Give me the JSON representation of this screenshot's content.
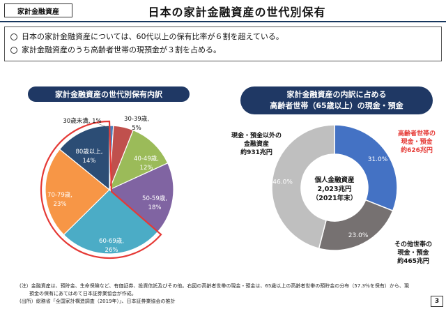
{
  "header": {
    "tag": "家計金融資産",
    "title": "日本の家計金融資産の世代別保有"
  },
  "bullets": [
    "日本の家計金融資産については、60代以上の保有比率が６割を超えている。",
    "家計金融資産のうち高齢者世帯の現預金が３割を占める。"
  ],
  "left_chart_title": "家計金融資産の世代別保有内訳",
  "right_chart_title_lines": [
    "家計金融資産の内訳に占める",
    "高齢者世帯（65歳以上）の現金・預金"
  ],
  "donut_center": [
    "個人金融資産",
    "2,023兆円",
    "（2021年末）"
  ],
  "donut_callouts": {
    "red": [
      "高齢者世帯の",
      "現金・預金",
      "約626兆円"
    ],
    "other": [
      "その他世帯の",
      "現金・預金",
      "約465兆円"
    ],
    "nondeposit": [
      "現金・預金以外の",
      "金融資産",
      "約931兆円"
    ]
  },
  "notes": [
    "(注）金融資産は、預貯金、生命保険など、有価証券、投資信託及びその他。右図の高齢者世帯の現金・預金は、65歳以上の高齢者世帯の預貯金の分布（57.3％を保有）から、現",
    "　　預金の保有にあてはめて日本証券業協会が作成。",
    "(出所）総務省「全国家計構造調査（2019年）」、日本証券業協会の推計"
  ],
  "page_number": "3",
  "colors": {
    "navy": "#1f3864",
    "highlight": "#e53935"
  },
  "chart_data": [
    {
      "type": "pie",
      "title": "家計金融資産の世代別保有内訳",
      "categories": [
        "30歳未満",
        "30-39歳",
        "40-49歳",
        "50-59歳",
        "60-69歳",
        "70-79歳",
        "80歳以上"
      ],
      "values": [
        1,
        5,
        12,
        18,
        26,
        23,
        14
      ],
      "labels": [
        [
          "30歳未満, 1%"
        ],
        [
          "30-39歳,",
          "5%"
        ],
        [
          "40-49歳,",
          "12%"
        ],
        [
          "50-59歳,",
          "18%"
        ],
        [
          "60-69歳,",
          "26%"
        ],
        [
          "70-79歳,",
          "23%"
        ],
        [
          "80歳以上,",
          "14%"
        ]
      ],
      "colors": [
        "#4a7ebb",
        "#c0504d",
        "#9bbb59",
        "#8064a2",
        "#4bacc6",
        "#f79646",
        "#2c4d75"
      ],
      "highlighted": [
        "60-69歳",
        "70-79歳",
        "80歳以上"
      ]
    },
    {
      "type": "pie",
      "title": "家計金融資産の内訳に占める高齢者世帯（65歳以上）の現金・預金",
      "categories": [
        "高齢者世帯の現金・預金",
        "その他世帯の現金・預金",
        "現金・預金以外の金融資産"
      ],
      "values": [
        31.0,
        23.0,
        46.0
      ],
      "labels": [
        "31.0%",
        "23.0%",
        "46.0%"
      ],
      "colors": [
        "#4472c4",
        "#767171",
        "#bfbfbf"
      ]
    }
  ]
}
